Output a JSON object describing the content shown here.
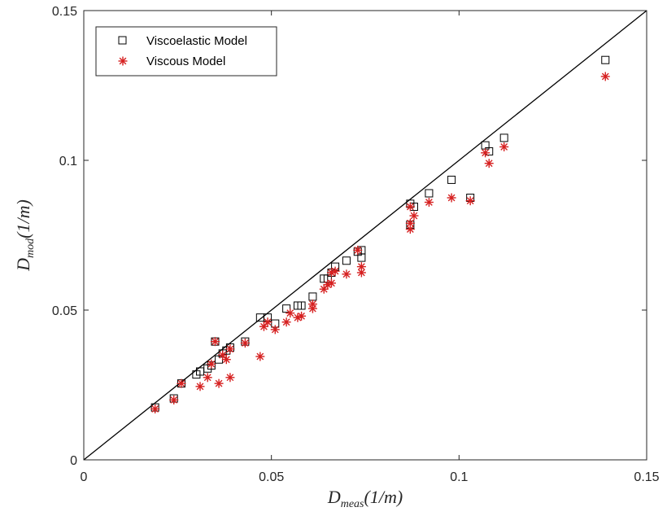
{
  "chart_data": {
    "type": "scatter",
    "title": "",
    "xlabel": {
      "main": "D",
      "sub": "meas",
      "unit": "(1/m)"
    },
    "ylabel": {
      "main": "D",
      "sub": "mod",
      "unit": "(1/m)"
    },
    "xlim": [
      0,
      0.15
    ],
    "ylim": [
      0,
      0.15
    ],
    "xticks": [
      "0",
      "0.05",
      "0.1",
      "0.15"
    ],
    "yticks": [
      "0",
      "0.05",
      "0.1",
      "0.15"
    ],
    "grid": false,
    "legend_position": "top-left",
    "reference_line": {
      "from": [
        0,
        0
      ],
      "to": [
        0.15,
        0.15
      ],
      "color": "#000000"
    },
    "series": [
      {
        "name": "Viscoelastic Model",
        "marker": "square",
        "color": "#000000",
        "points": [
          [
            0.019,
            0.0175
          ],
          [
            0.024,
            0.0205
          ],
          [
            0.026,
            0.0255
          ],
          [
            0.03,
            0.0285
          ],
          [
            0.031,
            0.0295
          ],
          [
            0.033,
            0.0305
          ],
          [
            0.034,
            0.0315
          ],
          [
            0.035,
            0.0395
          ],
          [
            0.036,
            0.0335
          ],
          [
            0.037,
            0.0355
          ],
          [
            0.038,
            0.0365
          ],
          [
            0.039,
            0.0375
          ],
          [
            0.043,
            0.0395
          ],
          [
            0.047,
            0.0475
          ],
          [
            0.049,
            0.0475
          ],
          [
            0.051,
            0.0455
          ],
          [
            0.054,
            0.0505
          ],
          [
            0.057,
            0.0515
          ],
          [
            0.058,
            0.0515
          ],
          [
            0.061,
            0.0545
          ],
          [
            0.064,
            0.0605
          ],
          [
            0.065,
            0.0605
          ],
          [
            0.066,
            0.0625
          ],
          [
            0.067,
            0.0645
          ],
          [
            0.07,
            0.0665
          ],
          [
            0.073,
            0.0695
          ],
          [
            0.074,
            0.0675
          ],
          [
            0.074,
            0.07
          ],
          [
            0.087,
            0.0785
          ],
          [
            0.087,
            0.0855
          ],
          [
            0.088,
            0.0845
          ],
          [
            0.092,
            0.089
          ],
          [
            0.098,
            0.0935
          ],
          [
            0.103,
            0.0875
          ],
          [
            0.107,
            0.105
          ],
          [
            0.108,
            0.103
          ],
          [
            0.112,
            0.1075
          ],
          [
            0.139,
            0.1335
          ]
        ]
      },
      {
        "name": "Viscous Model",
        "marker": "asterisk",
        "color": "#d62020",
        "points": [
          [
            0.019,
            0.017
          ],
          [
            0.024,
            0.02
          ],
          [
            0.026,
            0.0255
          ],
          [
            0.031,
            0.0245
          ],
          [
            0.033,
            0.0275
          ],
          [
            0.034,
            0.032
          ],
          [
            0.035,
            0.0395
          ],
          [
            0.036,
            0.0255
          ],
          [
            0.037,
            0.035
          ],
          [
            0.038,
            0.0335
          ],
          [
            0.039,
            0.0275
          ],
          [
            0.039,
            0.037
          ],
          [
            0.043,
            0.039
          ],
          [
            0.047,
            0.0345
          ],
          [
            0.048,
            0.0445
          ],
          [
            0.049,
            0.046
          ],
          [
            0.051,
            0.0435
          ],
          [
            0.054,
            0.046
          ],
          [
            0.055,
            0.049
          ],
          [
            0.057,
            0.0475
          ],
          [
            0.058,
            0.048
          ],
          [
            0.061,
            0.0505
          ],
          [
            0.061,
            0.052
          ],
          [
            0.064,
            0.057
          ],
          [
            0.065,
            0.0585
          ],
          [
            0.066,
            0.059
          ],
          [
            0.066,
            0.0625
          ],
          [
            0.067,
            0.063
          ],
          [
            0.07,
            0.062
          ],
          [
            0.073,
            0.07
          ],
          [
            0.074,
            0.0645
          ],
          [
            0.074,
            0.0625
          ],
          [
            0.087,
            0.077
          ],
          [
            0.087,
            0.079
          ],
          [
            0.088,
            0.0815
          ],
          [
            0.087,
            0.0845
          ],
          [
            0.092,
            0.086
          ],
          [
            0.098,
            0.0875
          ],
          [
            0.103,
            0.0865
          ],
          [
            0.107,
            0.1025
          ],
          [
            0.108,
            0.099
          ],
          [
            0.112,
            0.1045
          ],
          [
            0.139,
            0.128
          ]
        ]
      }
    ]
  }
}
